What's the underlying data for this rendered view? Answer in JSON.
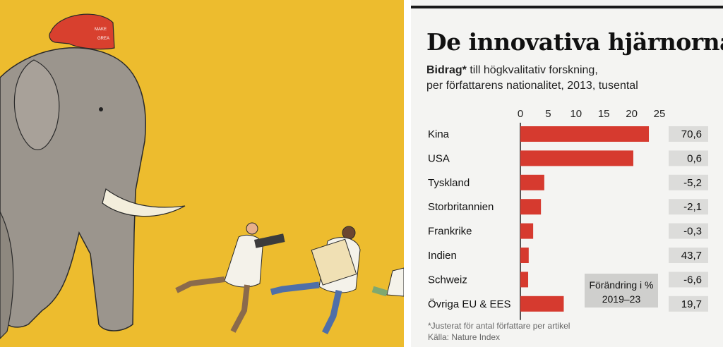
{
  "illustration": {
    "cap_text_line1": "MAKE",
    "cap_text_line2": "GREA",
    "colors": {
      "background": "#EDBC2E",
      "elephant": "#9B958D",
      "cap": "#D8402E",
      "tusk": "#F3EEDC"
    }
  },
  "chart": {
    "title": "De innovativa hjärnorna",
    "subtitle_bold": "Bidrag*",
    "subtitle_line1_rest": " till högkvalitativ forskning,",
    "subtitle_line2": "per författarens nationalitet, 2013, tusental",
    "change_label_line1": "Förändring i %",
    "change_label_line2": "2019–23",
    "footnote": "*Justerat för antal författare per artikel",
    "source": "Källa: Nature Index",
    "colors": {
      "bar": "#D63A2F",
      "change_box": "#DCDCDA",
      "label_box": "#CFCFCD",
      "panel": "#F4F4F2"
    }
  },
  "chart_data": {
    "type": "bar",
    "orientation": "horizontal",
    "categories": [
      "Kina",
      "USA",
      "Tyskland",
      "Storbritannien",
      "Frankrike",
      "Indien",
      "Schweiz",
      "Övriga EU & EES"
    ],
    "values": [
      23.1,
      20.3,
      4.3,
      3.7,
      2.3,
      1.5,
      1.4,
      7.8
    ],
    "change_pct": [
      "70,6",
      "0,6",
      "-5,2",
      "-2,1",
      "-0,3",
      "43,7",
      "-6,6",
      "19,7"
    ],
    "x_ticks": [
      "0",
      "5",
      "10",
      "15",
      "20",
      "25"
    ],
    "xlim": [
      0,
      25
    ],
    "grid": false
  }
}
